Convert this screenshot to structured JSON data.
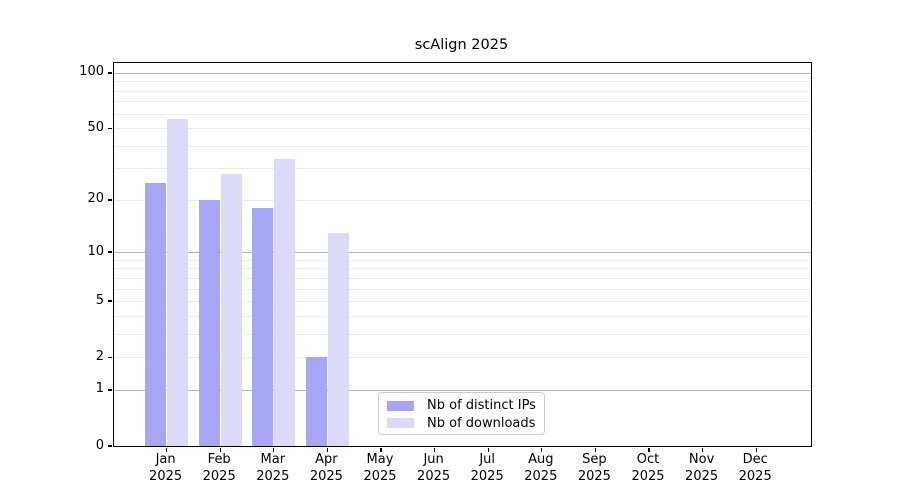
{
  "chart_data": {
    "type": "bar",
    "title": "scAlign 2025",
    "year": "2025",
    "categories": [
      "Jan",
      "Feb",
      "Mar",
      "Apr",
      "May",
      "Jun",
      "Jul",
      "Aug",
      "Sep",
      "Oct",
      "Nov",
      "Dec"
    ],
    "series": [
      {
        "name": "Nb of distinct IPs",
        "color": "#a6a6f4",
        "values": [
          25,
          20,
          18,
          2,
          0,
          0,
          0,
          0,
          0,
          0,
          0,
          0
        ]
      },
      {
        "name": "Nb of downloads",
        "color": "#dbdbf9",
        "values": [
          56,
          28,
          34,
          13,
          0,
          0,
          0,
          0,
          0,
          0,
          0,
          0
        ]
      }
    ],
    "y_ticks": [
      0,
      1,
      2,
      5,
      10,
      20,
      50,
      100
    ],
    "y_scale": "log10(1+value)",
    "ylim": [
      0,
      113
    ],
    "xlabel": "",
    "ylabel": "",
    "grid": "horizontal; dark major lines at 1,10,100; faint minor lines at 2-9,20-90",
    "legend_position": "bottom-center-inside",
    "colors": {
      "major_grid": "#b3b3b3",
      "minor_grid": "#e9e9e9",
      "axis": "#000000",
      "text": "#000000",
      "background": "#ffffff"
    }
  }
}
